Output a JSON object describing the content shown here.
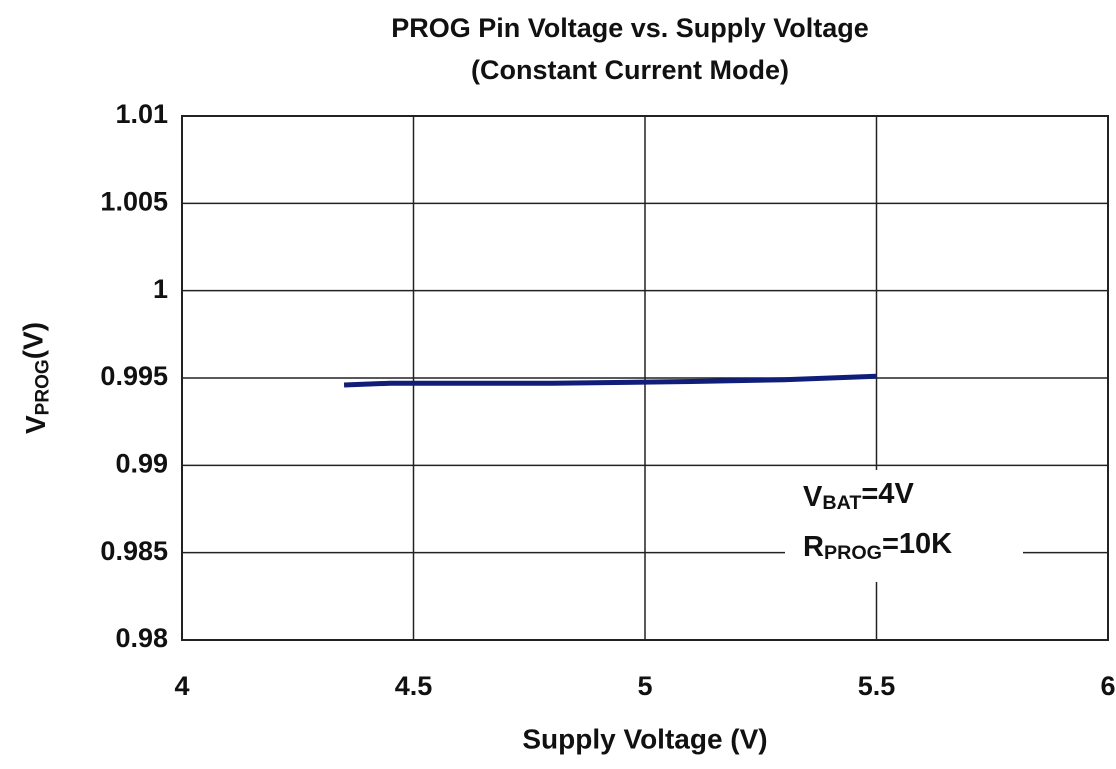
{
  "chart_data": {
    "type": "line",
    "title": "PROG Pin Voltage  vs. Supply Voltage",
    "subtitle": "(Constant Current Mode)",
    "x_label": "Supply Voltage (V)",
    "y_label": {
      "main": "V",
      "sub": "PROG",
      "rest": "(V)"
    },
    "annotations": [
      {
        "main": "V",
        "sub": "BAT",
        "rest": "=4V"
      },
      {
        "main": "R",
        "sub": "PROG",
        "rest": "=10K"
      }
    ],
    "xlim": [
      4,
      6
    ],
    "xticks": [
      4,
      4.5,
      5,
      5.5,
      6
    ],
    "ylim": [
      0.98,
      1.01
    ],
    "yticks": [
      0.98,
      0.985,
      0.99,
      0.995,
      1,
      1.005,
      1.01
    ],
    "grid": true,
    "series": [
      {
        "name": null,
        "color": "#0f1e78",
        "x": [
          4.35,
          4.45,
          4.8,
          5.1,
          5.3,
          5.5
        ],
        "values": [
          0.9946,
          0.9947,
          0.9947,
          0.9948,
          0.9949,
          0.9951
        ]
      }
    ]
  }
}
